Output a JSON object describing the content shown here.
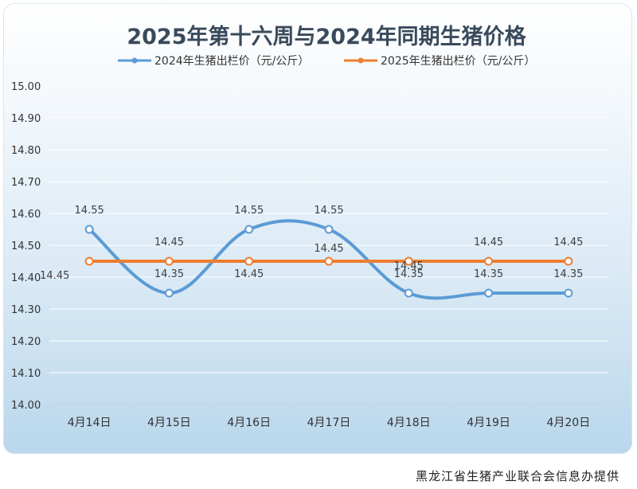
{
  "chart_data": {
    "type": "line",
    "title": "2025年第十六周与2024年同期生猪价格",
    "categories": [
      "4月14日",
      "4月15日",
      "4月16日",
      "4月17日",
      "4月18日",
      "4月19日",
      "4月20日"
    ],
    "series": [
      {
        "name": "2024年生猪出栏价（元/公斤）",
        "color": "#5b9bd5",
        "values": [
          14.55,
          14.35,
          14.55,
          14.55,
          14.35,
          14.35,
          14.35
        ],
        "labels": [
          "14.55",
          "14.35",
          "14.55",
          "14.55",
          "14.35",
          "14.35",
          "14.35"
        ]
      },
      {
        "name": "2025年生猪出栏价（元/公斤）",
        "color": "#ed7d31",
        "values": [
          14.45,
          14.45,
          14.45,
          14.45,
          14.45,
          14.45,
          14.45
        ],
        "labels": [
          "14.45",
          "14.45",
          "14.45",
          "14.45",
          "14.45",
          "14.45",
          "14.45"
        ]
      }
    ],
    "ylim": [
      14.0,
      15.0
    ],
    "yticks": [
      "14.00",
      "14.10",
      "14.20",
      "14.30",
      "14.40",
      "14.50",
      "14.60",
      "14.70",
      "14.80",
      "14.90",
      "15.00"
    ],
    "grid": true,
    "legend": "top"
  },
  "source_note": "黑龙江省生猪产业联合会信息办提供"
}
